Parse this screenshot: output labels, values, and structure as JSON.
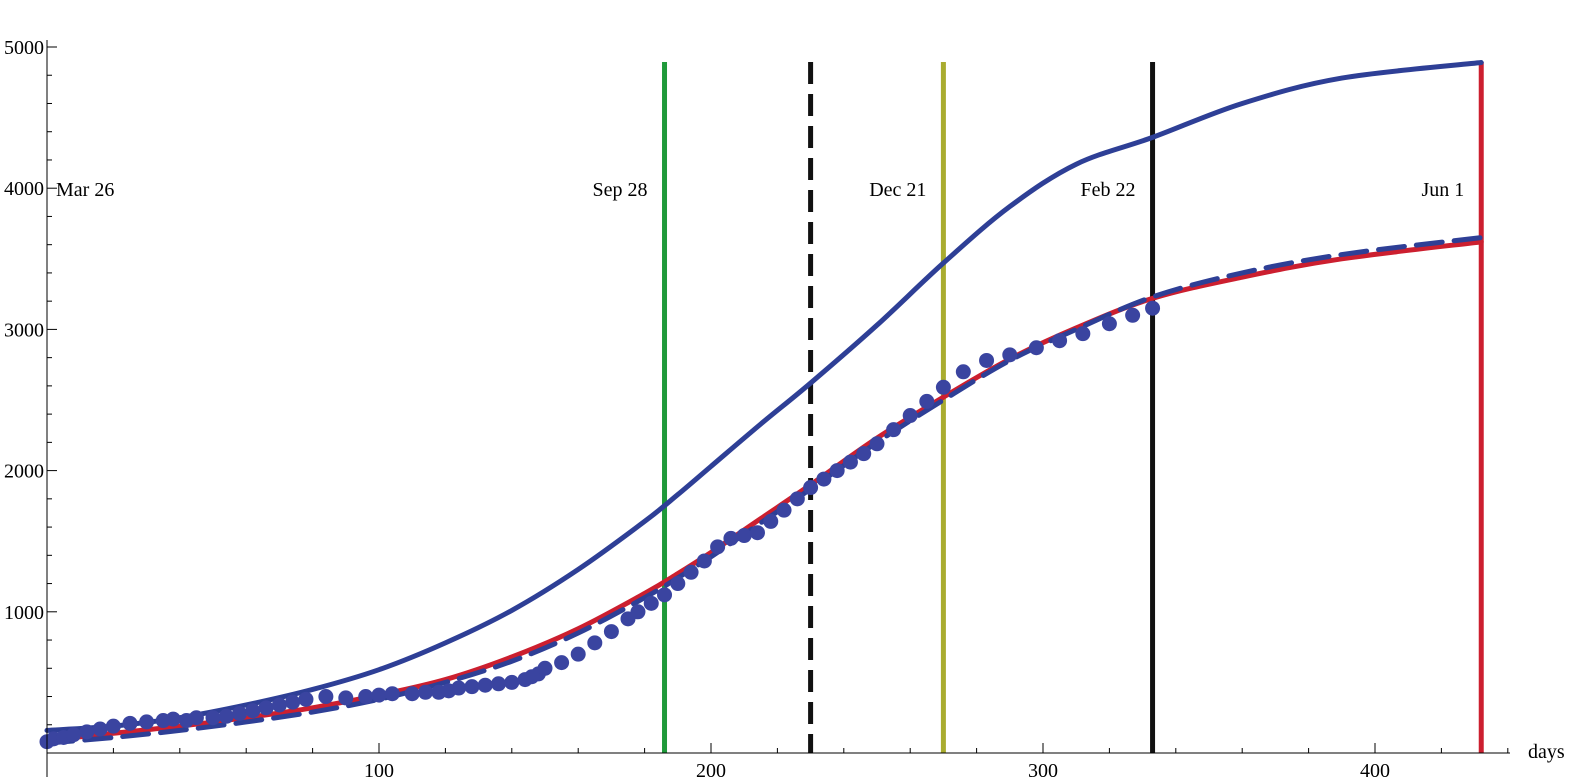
{
  "chart_data": {
    "type": "line",
    "title": "",
    "xlabel": "days",
    "ylabel": "",
    "xlim": [
      0,
      440
    ],
    "ylim": [
      0,
      5000
    ],
    "x_ticks": [
      100,
      200,
      300,
      400
    ],
    "y_ticks": [
      1000,
      2000,
      3000,
      4000,
      5000
    ],
    "grid": false,
    "legend": "none",
    "events": [
      {
        "label": "Mar 26",
        "x": 0,
        "color": null,
        "style": "none"
      },
      {
        "label": "Sep 28",
        "x": 186,
        "color": "#1f9a3a",
        "style": "solid"
      },
      {
        "label": "",
        "x": 230,
        "color": "#111111",
        "style": "dashed"
      },
      {
        "label": "Dec 21",
        "x": 270,
        "color": "#a9ac2f",
        "style": "solid"
      },
      {
        "label": "Feb 22",
        "x": 333,
        "color": "#111111",
        "style": "solid"
      },
      {
        "label": "Jun 1",
        "x": 432,
        "color": "#cc1f2f",
        "style": "solid"
      }
    ],
    "series": [
      {
        "kind": "line",
        "style": "solid",
        "color": "#2e3f96",
        "x": [
          0,
          20,
          40,
          60,
          80,
          100,
          120,
          140,
          160,
          180,
          190,
          200,
          215,
          230,
          250,
          270,
          290,
          310,
          333,
          360,
          390,
          432
        ],
        "y": [
          160,
          190,
          250,
          340,
          450,
          590,
          780,
          1010,
          1300,
          1640,
          1830,
          2030,
          2330,
          2620,
          3030,
          3470,
          3870,
          4170,
          4360,
          4600,
          4780,
          4890
        ]
      },
      {
        "kind": "line",
        "style": "solid",
        "color": "#cc1f2f",
        "x": [
          0,
          20,
          40,
          60,
          80,
          100,
          120,
          140,
          160,
          180,
          190,
          200,
          215,
          230,
          250,
          270,
          290,
          310,
          333,
          360,
          390,
          432
        ],
        "y": [
          90,
          140,
          190,
          250,
          320,
          410,
          520,
          680,
          880,
          1130,
          1270,
          1420,
          1660,
          1900,
          2230,
          2520,
          2790,
          3010,
          3220,
          3370,
          3500,
          3620
        ]
      },
      {
        "kind": "line",
        "style": "dashed",
        "color": "#2e3f96",
        "x": [
          0,
          20,
          40,
          60,
          80,
          100,
          120,
          140,
          160,
          180,
          190,
          200,
          215,
          230,
          250,
          270,
          290,
          310,
          333,
          360,
          390,
          432
        ],
        "y": [
          70,
          110,
          160,
          220,
          290,
          380,
          500,
          650,
          850,
          1100,
          1240,
          1390,
          1630,
          1870,
          2200,
          2500,
          2780,
          3000,
          3230,
          3400,
          3530,
          3650
        ]
      },
      {
        "kind": "scatter",
        "color": "#3a44a0",
        "x": [
          0,
          2,
          5,
          8,
          12,
          16,
          20,
          25,
          30,
          35,
          38,
          42,
          45,
          50,
          54,
          58,
          62,
          66,
          70,
          74,
          78,
          84,
          90,
          96,
          100,
          104,
          110,
          114,
          118,
          121,
          124,
          128,
          132,
          136,
          140,
          144,
          146,
          148,
          150,
          155,
          160,
          165,
          170,
          175,
          178,
          182,
          186,
          190,
          194,
          198,
          202,
          206,
          210,
          214,
          218,
          222,
          226,
          230,
          234,
          238,
          242,
          246,
          250,
          255,
          260,
          265,
          270,
          276,
          283,
          290,
          298,
          305,
          312,
          320,
          327,
          333
        ],
        "y": [
          80,
          100,
          110,
          130,
          150,
          170,
          190,
          210,
          220,
          230,
          240,
          230,
          250,
          250,
          260,
          280,
          300,
          320,
          340,
          360,
          380,
          400,
          390,
          400,
          410,
          420,
          420,
          430,
          430,
          440,
          460,
          470,
          480,
          490,
          500,
          520,
          540,
          560,
          600,
          640,
          700,
          780,
          860,
          950,
          1000,
          1060,
          1120,
          1200,
          1280,
          1360,
          1460,
          1520,
          1540,
          1560,
          1640,
          1720,
          1800,
          1880,
          1940,
          2000,
          2060,
          2120,
          2190,
          2290,
          2390,
          2490,
          2590,
          2700,
          2780,
          2820,
          2870,
          2920,
          2970,
          3040,
          3100,
          3150
        ]
      }
    ]
  }
}
